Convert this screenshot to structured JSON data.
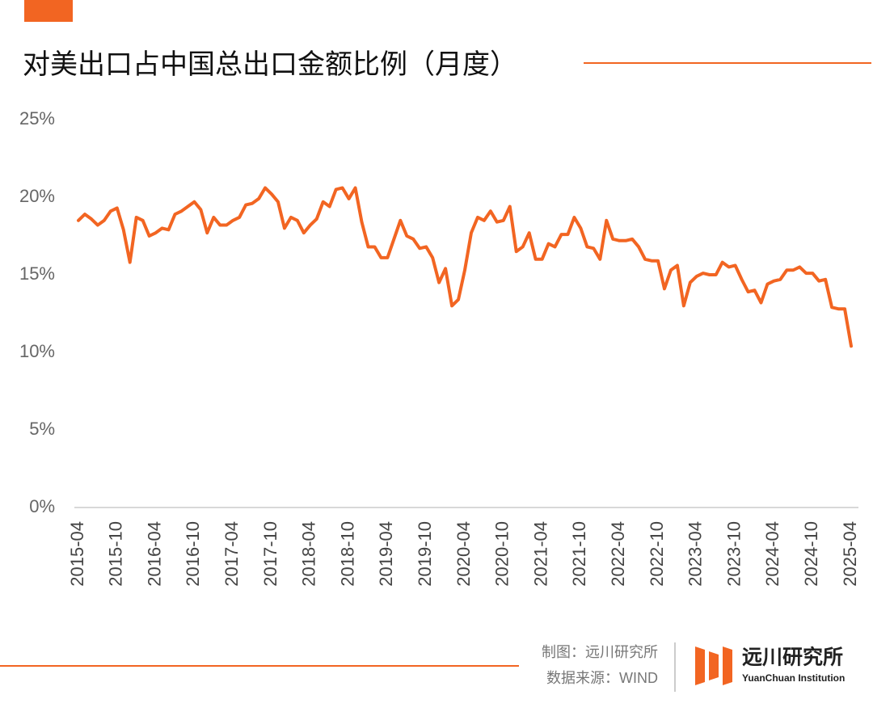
{
  "chart_data": {
    "type": "line",
    "title": "对美出口占中国总出口金额比例（月度）",
    "categories": [
      "2015-04",
      null,
      null,
      null,
      null,
      null,
      "2015-10",
      null,
      null,
      null,
      null,
      null,
      "2016-04",
      null,
      null,
      null,
      null,
      null,
      "2016-10",
      null,
      null,
      null,
      null,
      null,
      "2017-04",
      null,
      null,
      null,
      null,
      null,
      "2017-10",
      null,
      null,
      null,
      null,
      null,
      "2018-04",
      null,
      null,
      null,
      null,
      null,
      "2018-10",
      null,
      null,
      null,
      null,
      null,
      "2019-04",
      null,
      null,
      null,
      null,
      null,
      "2019-10",
      null,
      null,
      null,
      null,
      null,
      "2020-04",
      null,
      null,
      null,
      null,
      null,
      "2020-10",
      null,
      null,
      null,
      null,
      null,
      "2021-04",
      null,
      null,
      null,
      null,
      null,
      "2021-10",
      null,
      null,
      null,
      null,
      null,
      "2022-04",
      null,
      null,
      null,
      null,
      null,
      "2022-10",
      null,
      null,
      null,
      null,
      null,
      "2023-04",
      null,
      null,
      null,
      null,
      null,
      "2023-10",
      null,
      null,
      null,
      null,
      null,
      "2024-04",
      null,
      null,
      null,
      null,
      null,
      "2024-10",
      null,
      null,
      null,
      null,
      null,
      "2025-04"
    ],
    "values": [
      18.5,
      18.9,
      18.6,
      18.2,
      18.5,
      19.1,
      19.3,
      17.9,
      15.8,
      18.7,
      18.5,
      17.5,
      17.7,
      18.0,
      17.9,
      18.9,
      19.1,
      19.4,
      19.7,
      19.2,
      17.7,
      18.7,
      18.2,
      18.2,
      18.5,
      18.7,
      19.5,
      19.6,
      19.9,
      20.6,
      20.2,
      19.7,
      18.0,
      18.7,
      18.5,
      17.7,
      18.2,
      18.6,
      19.7,
      19.4,
      20.5,
      20.6,
      19.9,
      20.6,
      18.4,
      16.8,
      16.8,
      16.1,
      16.1,
      17.3,
      18.5,
      17.5,
      17.3,
      16.7,
      16.8,
      16.1,
      14.5,
      15.4,
      13.0,
      13.4,
      15.3,
      17.7,
      18.7,
      18.5,
      19.1,
      18.4,
      18.5,
      19.4,
      16.5,
      16.8,
      17.7,
      16.0,
      16.0,
      17.0,
      16.8,
      17.6,
      17.6,
      18.7,
      18.0,
      16.8,
      16.7,
      16.0,
      18.5,
      17.3,
      17.2,
      17.2,
      17.3,
      16.8,
      16.0,
      15.9,
      15.9,
      14.1,
      15.3,
      15.6,
      13.0,
      14.5,
      14.9,
      15.1,
      15.0,
      15.0,
      15.8,
      15.5,
      15.6,
      14.7,
      13.9,
      14.0,
      13.2,
      14.4,
      14.6,
      14.7,
      15.3,
      15.3,
      15.5,
      15.1,
      15.1,
      14.6,
      14.7,
      12.9,
      12.8,
      12.8,
      10.4
    ],
    "color": "#f26522",
    "ylim": [
      0,
      25
    ],
    "yticks": [
      {
        "value": 0,
        "label": "0%"
      },
      {
        "value": 5,
        "label": "5%"
      },
      {
        "value": 10,
        "label": "10%"
      },
      {
        "value": 15,
        "label": "15%"
      },
      {
        "value": 20,
        "label": "20%"
      },
      {
        "value": 25,
        "label": "25%"
      }
    ],
    "grid": false
  },
  "footer": {
    "credit": "制图：远川研究所",
    "source": "数据来源：WIND",
    "logo_name": "远川研究所",
    "logo_subtitle": "YuanChuan Institution"
  }
}
